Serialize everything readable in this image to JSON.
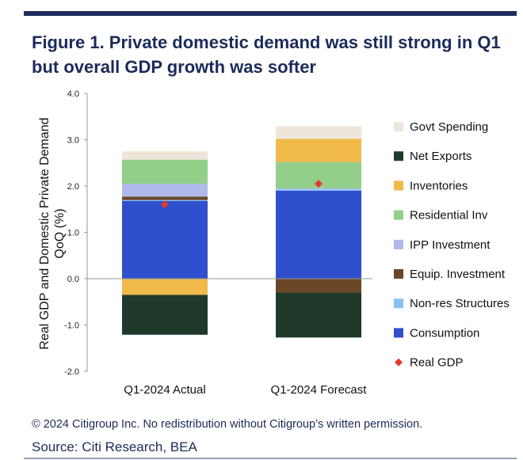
{
  "title": "Figure 1. Private domestic demand was still strong in Q1 but overall GDP growth was softer",
  "footer": {
    "copyright": "© 2024 Citigroup Inc. No redistribution without Citigroup’s written permission.",
    "source": "Source: Citi Research, BEA"
  },
  "chart_data": {
    "type": "bar",
    "stacked": true,
    "categories": [
      "Q1-2024 Actual",
      "Q1-2024 Forecast"
    ],
    "ylabel_lines": [
      "Real GDP and Domestic Private Demand",
      "QoQ (%)"
    ],
    "ylim": [
      -2.0,
      4.0
    ],
    "yticks": [
      "-2.0",
      "-1.0",
      "0.0",
      "1.0",
      "2.0",
      "3.0",
      "4.0"
    ],
    "grid": false,
    "legend_position": "right",
    "series": [
      {
        "name": "Govt Spending",
        "color": "#eee6da",
        "values": [
          0.18,
          0.27
        ]
      },
      {
        "name": "Net Exports",
        "color": "#1f3a2a",
        "values": [
          -0.86,
          -0.97
        ]
      },
      {
        "name": "Inventories",
        "color": "#f0b94a",
        "values": [
          -0.35,
          0.5
        ]
      },
      {
        "name": "Residential Inv",
        "color": "#93cf8a",
        "values": [
          0.52,
          0.57
        ]
      },
      {
        "name": "IPP Investment",
        "color": "#b1b9ea",
        "values": [
          0.28,
          0.02
        ]
      },
      {
        "name": "Equip. Investment",
        "color": "#6b4727",
        "values": [
          0.07,
          -0.3
        ]
      },
      {
        "name": "Non-res Structures",
        "color": "#88c2f3",
        "values": [
          0.02,
          0.03
        ]
      },
      {
        "name": "Consumption",
        "color": "#2f4fcc",
        "values": [
          1.68,
          1.9
        ]
      }
    ],
    "markers": {
      "name": "Real GDP",
      "color": "#e23a2a",
      "values": [
        1.6,
        2.05
      ]
    },
    "stack_order": [
      "Consumption",
      "Non-res Structures",
      "Equip. Investment",
      "IPP Investment",
      "Residential Inv",
      "Inventories",
      "Net Exports",
      "Govt Spending"
    ]
  }
}
